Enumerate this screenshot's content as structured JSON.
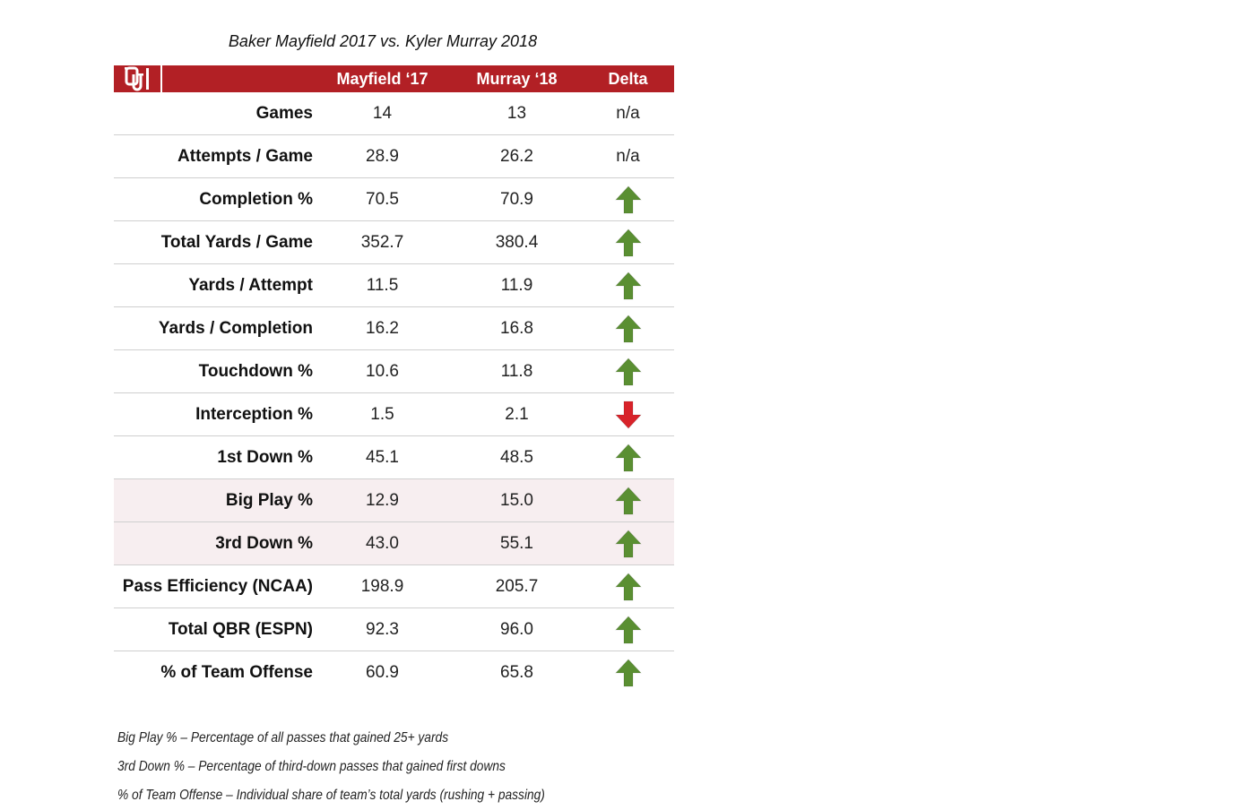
{
  "title": "Baker Mayfield 2017 vs. Kyler Murray 2018",
  "colors": {
    "header": "#b22025",
    "up": "#5a8f32",
    "down": "#d8232a",
    "highlight": "#f7eef0"
  },
  "header": {
    "col2": "Mayfield ‘17",
    "col3": "Murray ‘18",
    "col4": "Delta",
    "logo": "OU"
  },
  "chart_data": {
    "type": "table",
    "title": "Baker Mayfield 2017 vs. Kyler Murray 2018",
    "columns": [
      "",
      "Mayfield ‘17",
      "Murray ‘18",
      "Delta"
    ],
    "rows": [
      {
        "stat": "Games",
        "mayfield": "14",
        "murray": "13",
        "delta": "n/a"
      },
      {
        "stat": "Attempts / Game",
        "mayfield": "28.9",
        "murray": "26.2",
        "delta": "n/a"
      },
      {
        "stat": "Completion %",
        "mayfield": "70.5",
        "murray": "70.9",
        "delta": "up"
      },
      {
        "stat": "Total Yards / Game",
        "mayfield": "352.7",
        "murray": "380.4",
        "delta": "up"
      },
      {
        "stat": "Yards / Attempt",
        "mayfield": "11.5",
        "murray": "11.9",
        "delta": "up"
      },
      {
        "stat": "Yards / Completion",
        "mayfield": "16.2",
        "murray": "16.8",
        "delta": "up"
      },
      {
        "stat": "Touchdown %",
        "mayfield": "10.6",
        "murray": "11.8",
        "delta": "up"
      },
      {
        "stat": "Interception %",
        "mayfield": "1.5",
        "murray": "2.1",
        "delta": "down"
      },
      {
        "stat": "1st Down %",
        "mayfield": "45.1",
        "murray": "48.5",
        "delta": "up"
      },
      {
        "stat": "Big Play %",
        "mayfield": "12.9",
        "murray": "15.0",
        "delta": "up",
        "highlight": true
      },
      {
        "stat": "3rd Down %",
        "mayfield": "43.0",
        "murray": "55.1",
        "delta": "up",
        "highlight": true
      },
      {
        "stat": "Pass Efficiency (NCAA)",
        "mayfield": "198.9",
        "murray": "205.7",
        "delta": "up"
      },
      {
        "stat": "Total QBR (ESPN)",
        "mayfield": "92.3",
        "murray": "96.0",
        "delta": "up"
      },
      {
        "stat": "% of Team Offense",
        "mayfield": "60.9",
        "murray": "65.8",
        "delta": "up"
      }
    ]
  },
  "notes": [
    "Big Play % – Percentage of all passes that gained 25+ yards",
    "3rd Down % – Percentage of third-down passes that gained first downs",
    "% of Team Offense – Individual share of team’s total yards (rushing + passing)"
  ]
}
